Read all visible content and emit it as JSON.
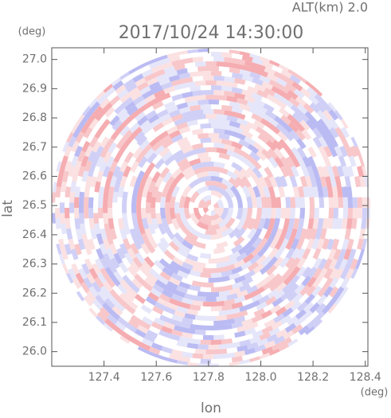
{
  "chart_data": {
    "type": "radar-ppi",
    "title": "2017/10/24 14:30:00",
    "subtitle": "ALT(km) 2.0",
    "x_label": "lon",
    "y_label": "lat",
    "x_unit": "(deg)",
    "y_unit": "(deg)",
    "xlim": [
      127.2,
      128.41
    ],
    "ylim": [
      25.95,
      27.04
    ],
    "xticks": [
      127.4,
      127.6,
      127.8,
      {
        "value": 128,
        "label": "128.0"
      },
      128.2,
      128.4
    ],
    "yticks": [
      {
        "value": 26,
        "label": "26.0"
      },
      26.1,
      26.2,
      26.3,
      26.4,
      26.5,
      26.6,
      26.7,
      26.8,
      26.9,
      {
        "value": 27,
        "label": "27.0"
      }
    ],
    "colors": [
      "#f4a9ad",
      "#b7b7f2"
    ]
  }
}
